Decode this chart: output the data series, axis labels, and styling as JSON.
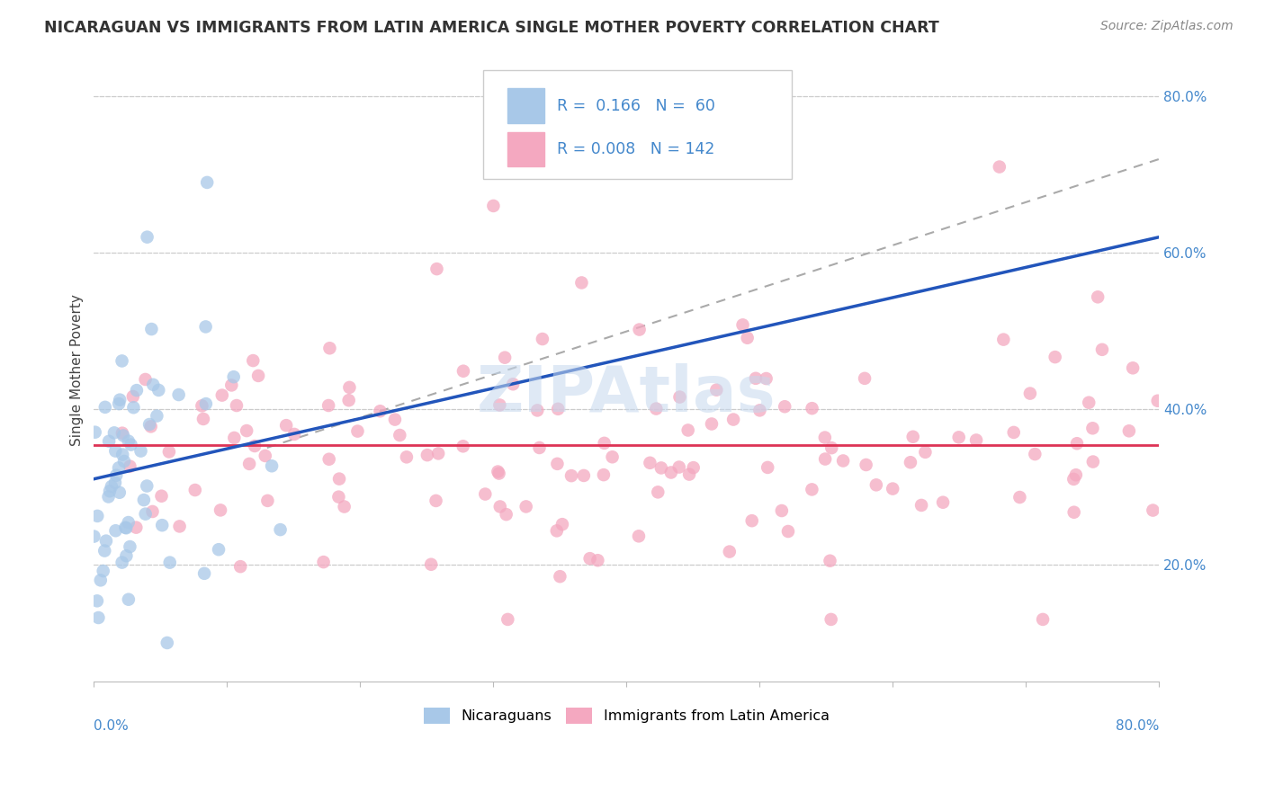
{
  "title": "NICARAGUAN VS IMMIGRANTS FROM LATIN AMERICA SINGLE MOTHER POVERTY CORRELATION CHART",
  "source": "Source: ZipAtlas.com",
  "ylabel": "Single Mother Poverty",
  "color_blue": "#A8C8E8",
  "color_pink": "#F4A8C0",
  "trendline_blue": "#2255BB",
  "trendline_pink": "#DD3355",
  "trendline_gray": "#AAAAAA",
  "grid_color": "#CCCCCC",
  "ytick_color": "#4488CC",
  "xtick_color": "#4488CC",
  "xlim": [
    0.0,
    0.8
  ],
  "ylim": [
    0.05,
    0.85
  ],
  "yticks": [
    0.2,
    0.4,
    0.6,
    0.8
  ],
  "ytick_labels": [
    "20.0%",
    "40.0%",
    "60.0%",
    "80.0%"
  ],
  "watermark": "ZIPAtlas",
  "watermark_color": "#C5D8EE",
  "blue_scatter_size": 110,
  "pink_scatter_size": 110
}
